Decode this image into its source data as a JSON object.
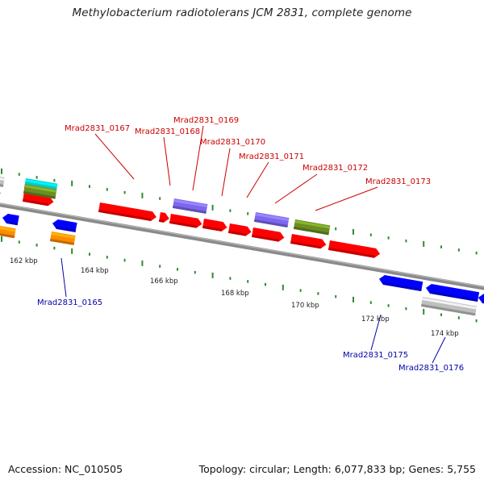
{
  "title": "Methylobacterium radiotolerans JCM 2831, complete genome",
  "footer": {
    "accession": "Accession: NC_010505",
    "topology": "Topology: circular; Length: 6,077,833 bp; Genes: 5,755"
  },
  "colors": {
    "forward_gene": "#ff0000",
    "reverse_gene": "#0000ff",
    "orange_gene": "#ff8c00",
    "purple_gene": "#7b68ee",
    "olive_gene": "#6b8e23",
    "gray_gene": "#bfbfbf",
    "cyan_gene": "#00cccc",
    "tick_color": "#2e8b2e",
    "forward_label": "#cc0000",
    "reverse_label": "#0000aa"
  },
  "scale_labels": [
    "162 kbp",
    "164 kbp",
    "166 kbp",
    "168 kbp",
    "170 kbp",
    "172 kbp",
    "174 kbp"
  ],
  "gene_labels": {
    "top": [
      "Mrad2831_0167",
      "Mrad2831_0168",
      "Mrad2831_0169",
      "Mrad2831_0170",
      "Mrad2831_0171",
      "Mrad2831_0172",
      "Mrad2831_0173"
    ],
    "bottom": [
      "Mrad2831_0165",
      "Mrad2831_0175",
      "Mrad2831_0176"
    ]
  }
}
